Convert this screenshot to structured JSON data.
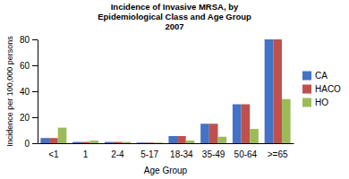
{
  "chart_data": {
    "type": "bar",
    "title": "Incidence of Invasive MRSA, by\nEpidemiological Class and Age Group\n2007",
    "xlabel": "Age Group",
    "ylabel": "Incidence per 100,000 persons",
    "categories": [
      "<1",
      "1",
      "2-4",
      "5-17",
      "18-34",
      "35-49",
      "50-64",
      ">=65"
    ],
    "series": [
      {
        "name": "CA",
        "color": "#4472C4",
        "values": [
          4,
          1,
          1,
          0.5,
          5.5,
          15,
          30,
          80
        ]
      },
      {
        "name": "HACO",
        "color": "#C0504D",
        "values": [
          4,
          1,
          1,
          0.5,
          5.5,
          15,
          30,
          80
        ]
      },
      {
        "name": "HO",
        "color": "#9BBB59",
        "values": [
          12,
          2,
          1,
          0.5,
          2,
          5,
          11,
          34
        ]
      }
    ],
    "ylim": [
      0,
      80
    ],
    "yticks": [
      0,
      20,
      40,
      60,
      80
    ],
    "legend": "right",
    "grid": false
  }
}
